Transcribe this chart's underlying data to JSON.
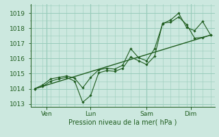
{
  "bg_color": "#cce8df",
  "grid_color": "#99ccbb",
  "line_color": "#1e5c1e",
  "marker_color": "#1e5c1e",
  "text_color": "#1e5c1e",
  "xlabel": "Pression niveau de la mer( hPa )",
  "ylim": [
    1012.8,
    1019.6
  ],
  "yticks": [
    1013,
    1014,
    1015,
    1016,
    1017,
    1018,
    1019
  ],
  "series1": {
    "x": [
      0,
      1,
      2,
      3,
      4,
      5,
      6,
      7,
      8,
      9,
      10,
      11,
      12,
      13,
      14,
      15,
      16,
      17,
      18,
      19,
      20,
      21,
      22
    ],
    "y": [
      1014.0,
      1014.15,
      1014.5,
      1014.65,
      1014.75,
      1014.5,
      1013.1,
      1013.55,
      1015.05,
      1015.2,
      1015.15,
      1015.35,
      1016.1,
      1015.85,
      1015.6,
      1016.15,
      1018.35,
      1018.4,
      1018.75,
      1018.25,
      1017.35,
      1017.4,
      1017.55
    ]
  },
  "series2": {
    "x": [
      0,
      1,
      2,
      3,
      4,
      5,
      6,
      7,
      8,
      9,
      10,
      11,
      12,
      13,
      14,
      15,
      16,
      17,
      18,
      19,
      20,
      21,
      22
    ],
    "y": [
      1014.0,
      1014.25,
      1014.65,
      1014.75,
      1014.85,
      1014.7,
      1014.05,
      1014.75,
      1015.25,
      1015.35,
      1015.3,
      1015.55,
      1016.65,
      1016.05,
      1015.85,
      1016.65,
      1018.3,
      1018.55,
      1019.0,
      1018.05,
      1017.85,
      1018.45,
      1017.55
    ]
  },
  "series3": {
    "x": [
      0,
      22
    ],
    "y": [
      1014.0,
      1017.55
    ]
  },
  "xlim": [
    -0.5,
    22.5
  ],
  "xtick_positions": [
    1.5,
    7,
    14,
    19.5
  ],
  "xtick_labels": [
    "Ven",
    "Lun",
    "Sam",
    "Dim"
  ],
  "vline_positions": [
    1.5,
    7,
    14,
    19.5
  ]
}
